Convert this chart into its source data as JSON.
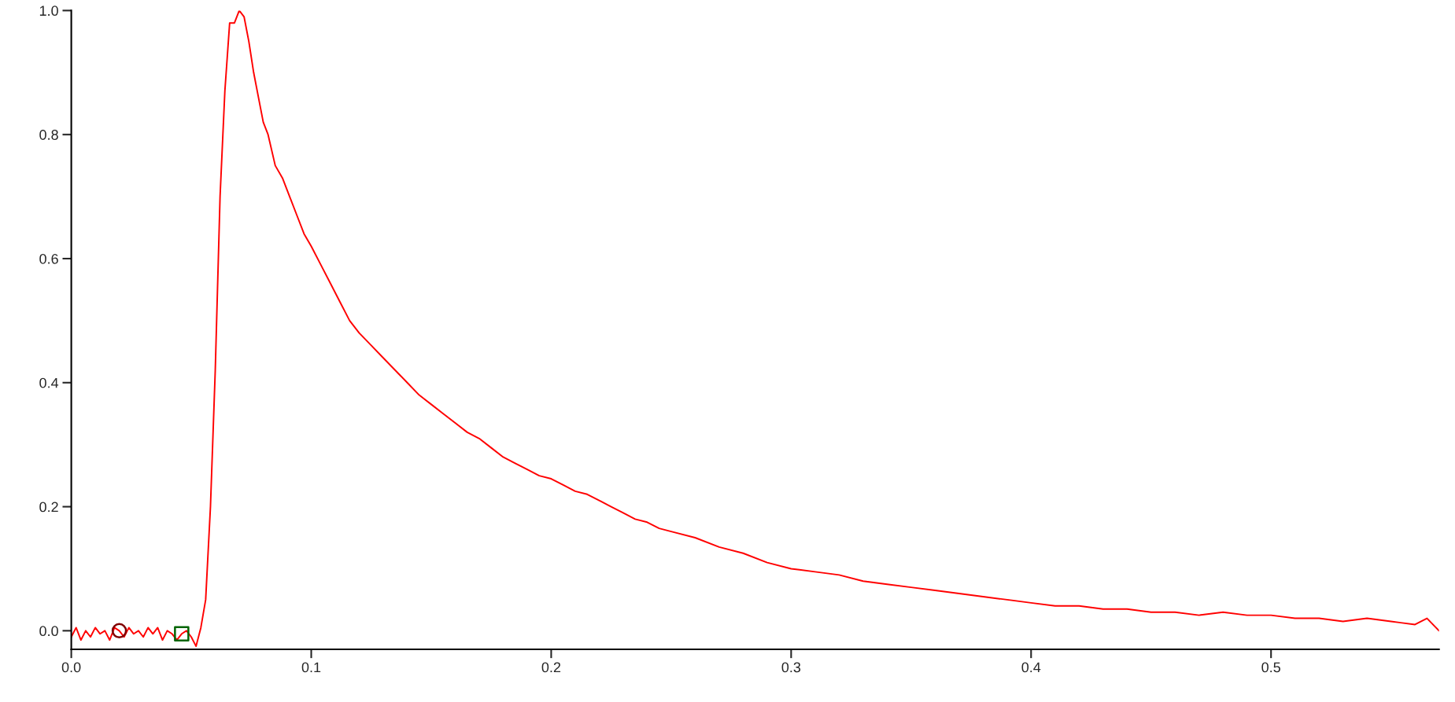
{
  "chart_data": {
    "type": "line",
    "xlim": [
      0,
      0.57
    ],
    "ylim": [
      -0.03,
      1.0
    ],
    "xticks": [
      {
        "value": 0,
        "label": "0.0"
      },
      0.1,
      0.2,
      0.3,
      0.4,
      0.5
    ],
    "yticks": [
      {
        "value": 0,
        "label": "0.0"
      },
      0.2,
      0.4,
      0.6,
      0.8,
      {
        "value": 1,
        "label": "1.0"
      }
    ],
    "grid": false,
    "legend": false,
    "line_style": "solid",
    "marker": "none",
    "series": [
      {
        "color": "#ff0000",
        "x": [
          0.0,
          0.002,
          0.004,
          0.006,
          0.008,
          0.01,
          0.012,
          0.014,
          0.016,
          0.018,
          0.02,
          0.022,
          0.024,
          0.026,
          0.028,
          0.03,
          0.032,
          0.034,
          0.036,
          0.038,
          0.04,
          0.042,
          0.044,
          0.046,
          0.048,
          0.05,
          0.052,
          0.054,
          0.056,
          0.058,
          0.06,
          0.062,
          0.064,
          0.066,
          0.068,
          0.07,
          0.072,
          0.074,
          0.076,
          0.078,
          0.08,
          0.082,
          0.085,
          0.088,
          0.091,
          0.094,
          0.097,
          0.1,
          0.104,
          0.108,
          0.112,
          0.116,
          0.12,
          0.125,
          0.13,
          0.135,
          0.14,
          0.145,
          0.15,
          0.155,
          0.16,
          0.165,
          0.17,
          0.175,
          0.18,
          0.185,
          0.19,
          0.195,
          0.2,
          0.205,
          0.21,
          0.215,
          0.22,
          0.225,
          0.23,
          0.235,
          0.24,
          0.245,
          0.25,
          0.26,
          0.27,
          0.28,
          0.29,
          0.3,
          0.31,
          0.32,
          0.33,
          0.34,
          0.35,
          0.36,
          0.37,
          0.38,
          0.39,
          0.4,
          0.41,
          0.42,
          0.43,
          0.44,
          0.45,
          0.46,
          0.47,
          0.48,
          0.49,
          0.5,
          0.51,
          0.52,
          0.53,
          0.54,
          0.55,
          0.56,
          0.565,
          0.57
        ],
        "values": [
          -0.01,
          0.005,
          -0.015,
          0.0,
          -0.01,
          0.005,
          -0.005,
          0.0,
          -0.015,
          0.005,
          0.0,
          -0.01,
          0.005,
          -0.005,
          0.0,
          -0.01,
          0.005,
          -0.005,
          0.005,
          -0.015,
          0.0,
          -0.005,
          -0.015,
          -0.005,
          0.0,
          -0.01,
          -0.025,
          0.005,
          0.05,
          0.2,
          0.42,
          0.7,
          0.87,
          0.98,
          0.98,
          1.0,
          0.99,
          0.95,
          0.9,
          0.86,
          0.82,
          0.8,
          0.75,
          0.73,
          0.7,
          0.67,
          0.64,
          0.62,
          0.59,
          0.56,
          0.53,
          0.5,
          0.48,
          0.46,
          0.44,
          0.42,
          0.4,
          0.38,
          0.365,
          0.35,
          0.335,
          0.32,
          0.31,
          0.295,
          0.28,
          0.27,
          0.26,
          0.25,
          0.245,
          0.235,
          0.225,
          0.22,
          0.21,
          0.2,
          0.19,
          0.18,
          0.175,
          0.165,
          0.16,
          0.15,
          0.135,
          0.125,
          0.11,
          0.1,
          0.095,
          0.09,
          0.08,
          0.075,
          0.07,
          0.065,
          0.06,
          0.055,
          0.05,
          0.045,
          0.04,
          0.04,
          0.035,
          0.035,
          0.03,
          0.03,
          0.025,
          0.03,
          0.025,
          0.025,
          0.02,
          0.02,
          0.015,
          0.02,
          0.015,
          0.01,
          0.02,
          0.0
        ]
      },
      {
        "type": "scatter",
        "marker": "circle",
        "color": "#800000",
        "x": [
          0.02
        ],
        "values": [
          0.0
        ]
      },
      {
        "type": "scatter",
        "marker": "square",
        "color": "#006400",
        "x": [
          0.046
        ],
        "values": [
          -0.005
        ]
      }
    ]
  }
}
